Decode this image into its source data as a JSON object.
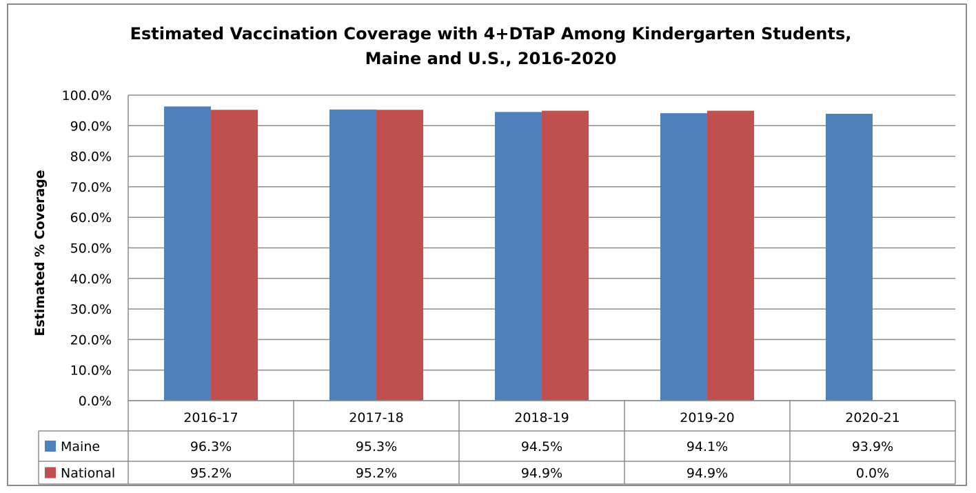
{
  "chart_data": {
    "type": "bar",
    "title_line1": "Estimated Vaccination Coverage with 4+DTaP Among Kindergarten Students,",
    "title_line2": "Maine and U.S., 2016-2020",
    "ylabel": "Estimated % Coverage",
    "xlabel": "",
    "ylim": [
      0,
      100
    ],
    "yticks": [
      "0.0%",
      "10.0%",
      "20.0%",
      "30.0%",
      "40.0%",
      "50.0%",
      "60.0%",
      "70.0%",
      "80.0%",
      "90.0%",
      "100.0%"
    ],
    "grid": true,
    "legend": "data-table",
    "categories": [
      "2016-17",
      "2017-18",
      "2018-19",
      "2019-20",
      "2020-21"
    ],
    "series": [
      {
        "name": "Maine",
        "color": "#4F81BD",
        "values": [
          96.3,
          95.3,
          94.5,
          94.1,
          93.9
        ],
        "labels": [
          "96.3%",
          "95.3%",
          "94.5%",
          "94.1%",
          "93.9%"
        ]
      },
      {
        "name": "National",
        "color": "#C0504D",
        "values": [
          95.2,
          95.2,
          94.9,
          94.9,
          0.0
        ],
        "labels": [
          "95.2%",
          "95.2%",
          "94.9%",
          "94.9%",
          "0.0%"
        ]
      }
    ]
  }
}
